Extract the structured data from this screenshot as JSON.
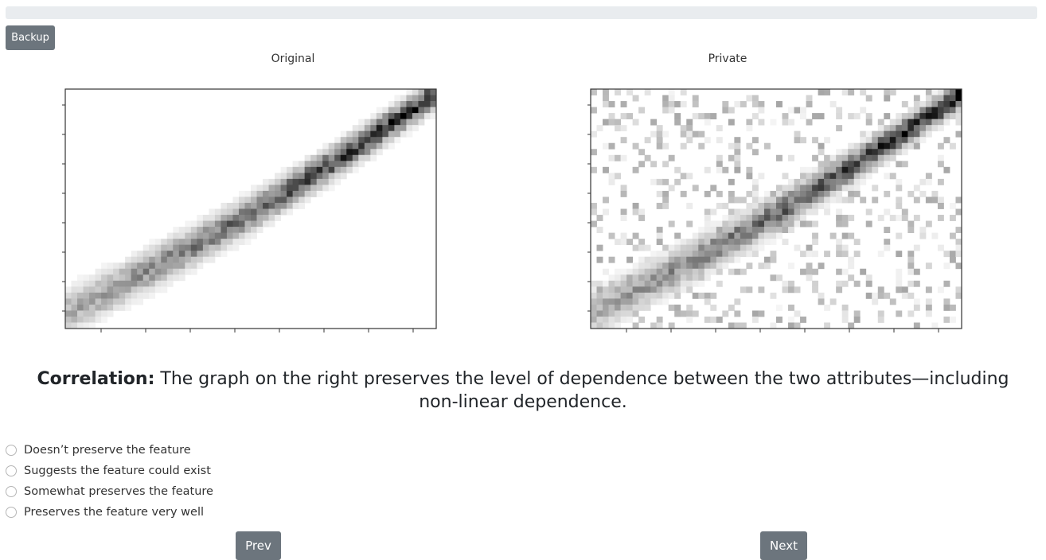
{
  "backup_label": "Backup",
  "plots": {
    "left_title": "Original",
    "right_title": "Private"
  },
  "question": {
    "prefix": "Correlation:",
    "text": " The graph on the right preserves the level of dependence between the two attributes—including non-linear dependence."
  },
  "options": [
    "Doesn’t preserve the feature",
    "Suggests the feature could exist",
    "Somewhat preserves the feature",
    "Preserves the feature very well"
  ],
  "nav": {
    "prev_label": "Prev",
    "next_label": "Next"
  },
  "colors": {
    "button": "#6c757d",
    "progress_track": "#e9ecef",
    "heatmap_max": "#000000"
  },
  "chart_data": [
    {
      "type": "heatmap",
      "title": "Original",
      "colormap": "greys",
      "pattern": "dense diagonal band from bottom-left to top-right, slightly curved, no background noise",
      "xlabel": "",
      "ylabel": "",
      "x_tick_count": 8,
      "y_tick_count": 8,
      "grid": false
    },
    {
      "type": "heatmap",
      "title": "Private",
      "colormap": "greys",
      "pattern": "diagonal band from bottom-left to top-right with scattered background noise cells",
      "xlabel": "",
      "ylabel": "",
      "x_tick_count": 8,
      "y_tick_count": 8,
      "grid": false
    }
  ]
}
